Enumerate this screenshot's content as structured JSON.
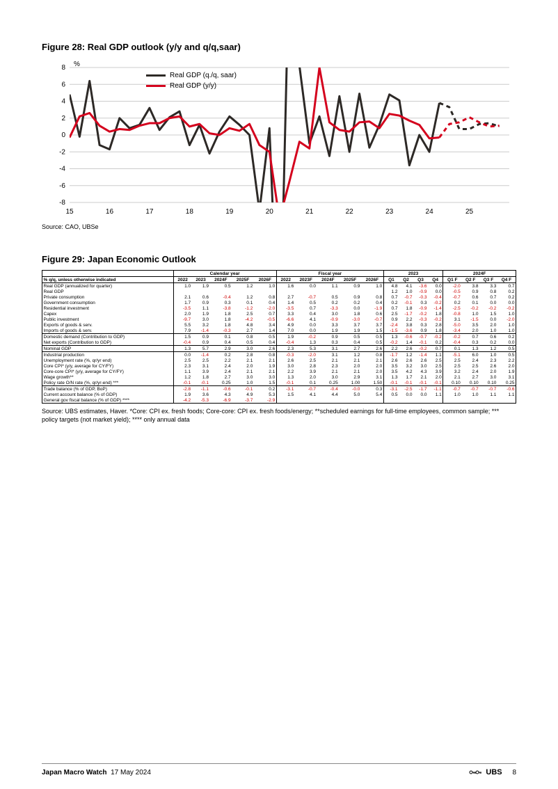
{
  "figure28": {
    "title": "Figure 28: Real GDP outlook (y/y and q/q,saar)",
    "y_axis_label": "%",
    "source": "Source: CAO, UBSe",
    "chart": {
      "type": "line",
      "ylim": [
        -8,
        8
      ],
      "ytick_step": 2,
      "xticks": [
        15,
        16,
        17,
        18,
        19,
        20,
        21,
        22,
        23,
        24,
        25
      ],
      "xlim": [
        15,
        26
      ],
      "background": "#ffffff",
      "grid_color": "#cccccc",
      "forecast_start_x": 24.25,
      "series": [
        {
          "name": "Real GDP (q./q, saar)",
          "color": "#2d2926",
          "width": 3,
          "data": [
            [
              15.0,
              4.8
            ],
            [
              15.25,
              -0.2
            ],
            [
              15.5,
              6.4
            ],
            [
              15.75,
              -1.2
            ],
            [
              16.0,
              -1.7
            ],
            [
              16.25,
              2.0
            ],
            [
              16.5,
              0.8
            ],
            [
              16.75,
              1.2
            ],
            [
              17.0,
              3.2
            ],
            [
              17.25,
              0.6
            ],
            [
              17.5,
              2.1
            ],
            [
              17.75,
              2.8
            ],
            [
              18.0,
              -1.2
            ],
            [
              18.25,
              1.2
            ],
            [
              18.5,
              -2.2
            ],
            [
              18.75,
              0.4
            ],
            [
              19.0,
              2.2
            ],
            [
              19.25,
              1.2
            ],
            [
              19.5,
              0.0
            ],
            [
              19.75,
              -9.0
            ],
            [
              20.0,
              0.8
            ],
            [
              20.25,
              -28.0
            ],
            [
              20.5,
              22.0
            ],
            [
              20.75,
              8.2
            ],
            [
              21.0,
              -1.0
            ],
            [
              21.25,
              2.2
            ],
            [
              21.5,
              -2.5
            ],
            [
              21.75,
              4.6
            ],
            [
              22.0,
              -2.0
            ],
            [
              22.25,
              4.9
            ],
            [
              22.5,
              -1.5
            ],
            [
              22.75,
              1.2
            ],
            [
              23.0,
              4.8
            ],
            [
              23.25,
              4.1
            ],
            [
              23.5,
              -3.6
            ],
            [
              23.75,
              0.0
            ],
            [
              24.0,
              -2.0
            ],
            [
              24.25,
              3.8
            ],
            [
              24.5,
              3.3
            ],
            [
              24.75,
              0.7
            ],
            [
              25.0,
              0.7
            ],
            [
              25.25,
              1.3
            ],
            [
              25.5,
              1.4
            ],
            [
              25.75,
              1.0
            ]
          ]
        },
        {
          "name": "Real GDP (y/y)",
          "color": "#d4021d",
          "width": 3,
          "data": [
            [
              15.0,
              -0.3
            ],
            [
              15.25,
              2.2
            ],
            [
              15.5,
              2.6
            ],
            [
              15.75,
              1.1
            ],
            [
              16.0,
              0.4
            ],
            [
              16.25,
              0.7
            ],
            [
              16.5,
              0.6
            ],
            [
              16.75,
              1.1
            ],
            [
              17.0,
              1.4
            ],
            [
              17.25,
              1.4
            ],
            [
              17.5,
              2.0
            ],
            [
              17.75,
              2.2
            ],
            [
              18.0,
              1.0
            ],
            [
              18.25,
              1.3
            ],
            [
              18.5,
              0.2
            ],
            [
              18.75,
              0.0
            ],
            [
              19.0,
              0.8
            ],
            [
              19.25,
              0.5
            ],
            [
              19.5,
              1.3
            ],
            [
              19.75,
              -1.2
            ],
            [
              20.0,
              -2.0
            ],
            [
              20.25,
              -10.0
            ],
            [
              20.5,
              -5.5
            ],
            [
              20.75,
              -0.8
            ],
            [
              21.0,
              -1.6
            ],
            [
              21.25,
              8.0
            ],
            [
              21.5,
              1.5
            ],
            [
              21.75,
              0.6
            ],
            [
              22.0,
              0.4
            ],
            [
              22.25,
              1.5
            ],
            [
              22.5,
              1.6
            ],
            [
              22.75,
              0.8
            ],
            [
              23.0,
              2.5
            ],
            [
              23.25,
              2.3
            ],
            [
              23.5,
              1.7
            ],
            [
              23.75,
              1.2
            ],
            [
              24.0,
              -0.4
            ],
            [
              24.25,
              -0.3
            ],
            [
              24.5,
              1.3
            ],
            [
              24.75,
              1.5
            ],
            [
              25.0,
              2.1
            ],
            [
              25.25,
              1.5
            ],
            [
              25.5,
              1.0
            ],
            [
              25.75,
              1.1
            ]
          ]
        }
      ]
    }
  },
  "figure29": {
    "title": "Figure 29: Japan Economic Outlook",
    "source": "Source: UBS estimates, Haver. *Core: CPI ex. fresh foods; Core-core: CPI ex. fresh foods/energy; **scheduled earnings for full-time employees, common sample; *** policy targets (not market yield); **** only annual data",
    "corner": "% q/q, unless otherwise indicated",
    "group_headers": [
      {
        "label": "Calendar year",
        "span": 5
      },
      {
        "label": "Fiscal year",
        "span": 5
      },
      {
        "label": "2023",
        "span": 4
      },
      {
        "label": "2024F",
        "span": 4
      }
    ],
    "col_headers": [
      "2022",
      "2023",
      "2024F",
      "2025F",
      "2026F",
      "2022",
      "2023F",
      "2024F",
      "2025F",
      "2026F",
      "Q1",
      "Q2",
      "Q3",
      "Q4",
      "Q1 F",
      "Q2 F",
      "Q3 F",
      "Q4 F"
    ],
    "sections": [
      {
        "rows": [
          {
            "label": "Real GDP (annualized for quarter)",
            "vals": [
              "1.0",
              "1.9",
              "0.5",
              "1.2",
              "1.0",
              "1.6",
              "0.0",
              "1.1",
              "0.9",
              "1.0",
              "4.8",
              "4.1",
              "-3.6",
              "0.0",
              "-2.0",
              "3.8",
              "3.3",
              "0.7"
            ]
          },
          {
            "label": "Real GDP",
            "vals": [
              "",
              "",
              "",
              "",
              "",
              "",
              "",
              "",
              "",
              "",
              "1.2",
              "1.0",
              "-0.9",
              "0.0",
              "-0.5",
              "0.9",
              "0.8",
              "0.2"
            ]
          },
          {
            "label": "  Private consumption",
            "vals": [
              "2.1",
              "0.6",
              "-0.4",
              "1.2",
              "0.8",
              "2.7",
              "-0.7",
              "0.5",
              "0.9",
              "0.8",
              "0.7",
              "-0.7",
              "-0.3",
              "-0.4",
              "-0.7",
              "0.6",
              "0.7",
              "0.2"
            ]
          },
          {
            "label": "  Government consumption",
            "vals": [
              "1.7",
              "0.9",
              "0.3",
              "0.1",
              "0.4",
              "1.4",
              "0.5",
              "0.2",
              "0.2",
              "0.4",
              "0.2",
              "-0.1",
              "0.3",
              "-0.2",
              "0.2",
              "0.1",
              "0.0",
              "0.0"
            ]
          },
          {
            "label": "  Residential investment",
            "vals": [
              "-3.5",
              "1.1",
              "-3.8",
              "-1.2",
              "-2.0",
              "-3.5",
              "0.7",
              "-3.3",
              "0.0",
              "-1.9",
              "0.7",
              "1.8",
              "-0.9",
              "-1.4",
              "-2.5",
              "-0.2",
              "-0.2",
              "-0.2"
            ]
          },
          {
            "label": "  Capex",
            "vals": [
              "2.0",
              "1.9",
              "1.8",
              "2.5",
              "0.7",
              "3.3",
              "0.4",
              "3.0",
              "1.8",
              "0.6",
              "2.5",
              "-1.7",
              "-0.2",
              "1.8",
              "-0.8",
              "1.0",
              "1.5",
              "1.0"
            ]
          },
          {
            "label": "  Public investment",
            "vals": [
              "-9.7",
              "3.0",
              "1.8",
              "-4.2",
              "-0.5",
              "-6.6",
              "4.1",
              "-0.9",
              "-3.0",
              "-0.7",
              "0.9",
              "2.2",
              "-0.3",
              "-0.2",
              "3.1",
              "-1.5",
              "0.0",
              "-2.0"
            ]
          },
          {
            "label": "  Exports of goods & serv.",
            "vals": [
              "5.5",
              "3.2",
              "1.8",
              "4.8",
              "3.4",
              "4.9",
              "0.0",
              "3.3",
              "3.7",
              "3.7",
              "-2.4",
              "3.8",
              "0.3",
              "2.8",
              "-5.0",
              "3.5",
              "2.0",
              "1.0"
            ]
          },
          {
            "label": "  Imports of goods & serv.",
            "vals": [
              "7.9",
              "-1.4",
              "-0.3",
              "2.7",
              "1.4",
              "7.0",
              "0.0",
              "1.9",
              "1.9",
              "1.5",
              "-1.5",
              "-3.6",
              "0.9",
              "1.8",
              "-3.4",
              "2.0",
              "1.0",
              "1.0"
            ]
          }
        ]
      },
      {
        "rows": [
          {
            "label": "Domestic demand (Contribution to GDP)",
            "vals": [
              "1.5",
              "0.9",
              "0.1",
              "0.8",
              "0.5",
              "1.9",
              "-0.2",
              "0.9",
              "0.5",
              "0.5",
              "1.3",
              "-0.6",
              "-0.7",
              "-0.2",
              "-0.2",
              "0.7",
              "0.6",
              "0.2"
            ]
          },
          {
            "label": "Net exports (Contribution to GDP)",
            "vals": [
              "-0.4",
              "0.9",
              "0.4",
              "0.5",
              "0.4",
              "-0.4",
              "1.3",
              "0.3",
              "0.4",
              "0.5",
              "-0.2",
              "1.4",
              "-0.1",
              "0.2",
              "-0.4",
              "0.3",
              "0.2",
              "0.0"
            ]
          }
        ]
      },
      {
        "rows": [
          {
            "label": "Nominal GDP",
            "vals": [
              "1.3",
              "5.7",
              "2.9",
              "3.0",
              "2.6",
              "2.3",
              "5.3",
              "3.1",
              "2.7",
              "2.6",
              "2.2",
              "2.6",
              "-0.2",
              "0.7",
              "0.1",
              "1.3",
              "1.2",
              "0.5"
            ]
          }
        ]
      },
      {
        "rows": [
          {
            "label": "Industrial production",
            "vals": [
              "0.0",
              "-1.4",
              "0.2",
              "2.8",
              "0.8",
              "-0.3",
              "-2.0",
              "3.1",
              "1.2",
              "0.8",
              "-1.7",
              "1.2",
              "-1.4",
              "1.1",
              "-5.1",
              "6.0",
              "1.0",
              "0.5"
            ]
          },
          {
            "label": "Unemployment  rate (%,  qr/yr end)",
            "vals": [
              "2.5",
              "2.5",
              "2.2",
              "2.1",
              "2.1",
              "2.6",
              "2.5",
              "2.1",
              "2.1",
              "2.1",
              "2.6",
              "2.6",
              "2.6",
              "2.5",
              "2.5",
              "2.4",
              "2.3",
              "2.2"
            ]
          },
          {
            "label": "Core CPI* (y/y, average for CY/FY)",
            "vals": [
              "2.3",
              "3.1",
              "2.4",
              "2.0",
              "1.9",
              "3.0",
              "2.8",
              "2.3",
              "2.0",
              "2.0",
              "3.5",
              "3.2",
              "3.0",
              "2.5",
              "2.5",
              "2.5",
              "2.6",
              "2.0"
            ]
          },
          {
            "label": "Core-core CPI* (y/y, average for CY/FY)",
            "vals": [
              "1.1",
              "3.9",
              "2.4",
              "2.1",
              "2.1",
              "2.2",
              "3.9",
              "2.1",
              "2.1",
              "2.0",
              "3.5",
              "4.2",
              "4.3",
              "3.9",
              "3.2",
              "2.4",
              "2.0",
              "1.9"
            ]
          },
          {
            "label": "Wage growth**",
            "vals": [
              "1.2",
              "1.8",
              "2.7",
              "3.0",
              "3.0",
              "1.3",
              "2.0",
              "3.0",
              "2.9",
              "3.1",
              "1.3",
              "1.7",
              "2.1",
              "2.0",
              "2.1",
              "2.7",
              "3.0",
              "3.1"
            ]
          },
          {
            "label": "Policy rate O/N rate (%,  qr/yr-end) ***",
            "vals": [
              "-0.1",
              "-0.1",
              "0.25",
              "1.0",
              "1.5",
              "-0.1",
              "0.1",
              "0.25",
              "1.00",
              "1.50",
              "-0.1",
              "-0.1",
              "-0.1",
              "-0.1",
              "0.10",
              "0.10",
              "0.10",
              "0.25"
            ]
          }
        ]
      },
      {
        "rows": [
          {
            "label": "Trade balance (% of GDP, BoP)",
            "vals": [
              "-2.8",
              "-1.1",
              "-0.6",
              "-0.1",
              "0.2",
              "-3.1",
              "-0.7",
              "-0.4",
              "-0.0",
              "0.3",
              "-3.1",
              "-2.5",
              "-1.7",
              "-1.1",
              "-0.7",
              "-0.7",
              "-0.7",
              "-0.6"
            ]
          },
          {
            "label": "Current account balance (% of GDP)",
            "vals": [
              "1.9",
              "3.6",
              "4.3",
              "4.9",
              "5.3",
              "1.5",
              "4.1",
              "4.4",
              "5.0",
              "5.4",
              "0.5",
              "0.0",
              "0.0",
              "1.1",
              "1.0",
              "1.0",
              "1.1",
              "1.1"
            ]
          },
          {
            "label": "General gov fiscal balance (% of GDP) ****",
            "vals": [
              "-4.2",
              "-5.3",
              "-6.9",
              "-3.7",
              "-2.9",
              "",
              "",
              "",
              "",
              "",
              "",
              "",
              "",
              "",
              "",
              "",
              "",
              ""
            ]
          }
        ]
      }
    ],
    "neg_color": "#cc0000",
    "border_color": "#000000",
    "group_lborders_at": [
      0,
      5,
      10,
      14
    ],
    "group_rborder_at": 17
  },
  "footer": {
    "title": "Japan Macro Watch",
    "date": "17 May 2024",
    "brand": "UBS",
    "page": "8"
  }
}
